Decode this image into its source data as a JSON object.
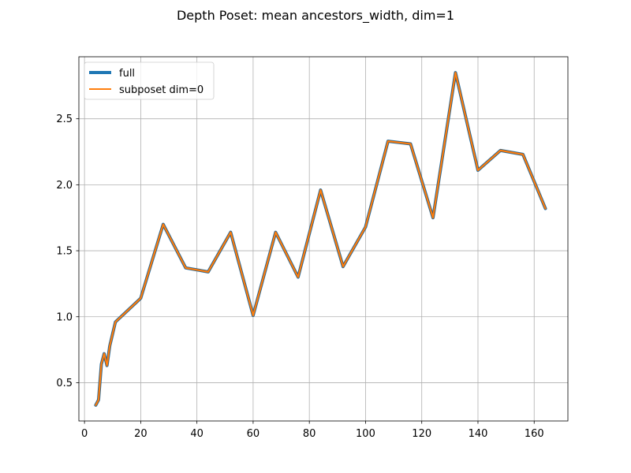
{
  "chart_data": {
    "type": "line",
    "title": "Depth Poset: mean ancestors_width, dim=1",
    "xlabel": "",
    "ylabel": "",
    "xlim": [
      -2.0,
      172.0
    ],
    "ylim": [
      0.21,
      2.97
    ],
    "xticks": [
      0,
      20,
      40,
      60,
      80,
      100,
      120,
      140,
      160
    ],
    "yticks": [
      0.5,
      1.0,
      1.5,
      2.0,
      2.5
    ],
    "xtick_labels": [
      "0",
      "20",
      "40",
      "60",
      "80",
      "100",
      "120",
      "140",
      "160"
    ],
    "ytick_labels": [
      "0.5",
      "1.0",
      "1.5",
      "2.0",
      "2.5"
    ],
    "grid": true,
    "legend_position": "top-left",
    "x": [
      4,
      5,
      6,
      7,
      8,
      9,
      10,
      11,
      20,
      28,
      36,
      44,
      52,
      60,
      68,
      76,
      84,
      92,
      100,
      108,
      116,
      124,
      132,
      140,
      148,
      156,
      164
    ],
    "series": [
      {
        "name": "full",
        "color": "#1f77b4",
        "values": [
          0.33,
          0.37,
          0.64,
          0.72,
          0.63,
          0.78,
          0.87,
          0.96,
          1.14,
          1.7,
          1.37,
          1.34,
          1.64,
          1.01,
          1.64,
          1.3,
          1.96,
          1.38,
          1.68,
          2.33,
          2.31,
          1.75,
          2.85,
          2.11,
          2.26,
          2.23,
          1.82
        ]
      },
      {
        "name": "subposet dim=0",
        "color": "#ff7f0e",
        "values": [
          0.33,
          0.37,
          0.64,
          0.72,
          0.63,
          0.78,
          0.87,
          0.96,
          1.14,
          1.7,
          1.37,
          1.34,
          1.64,
          1.01,
          1.64,
          1.3,
          1.96,
          1.38,
          1.68,
          2.33,
          2.31,
          1.75,
          2.85,
          2.11,
          2.26,
          2.23,
          1.82
        ]
      }
    ]
  }
}
